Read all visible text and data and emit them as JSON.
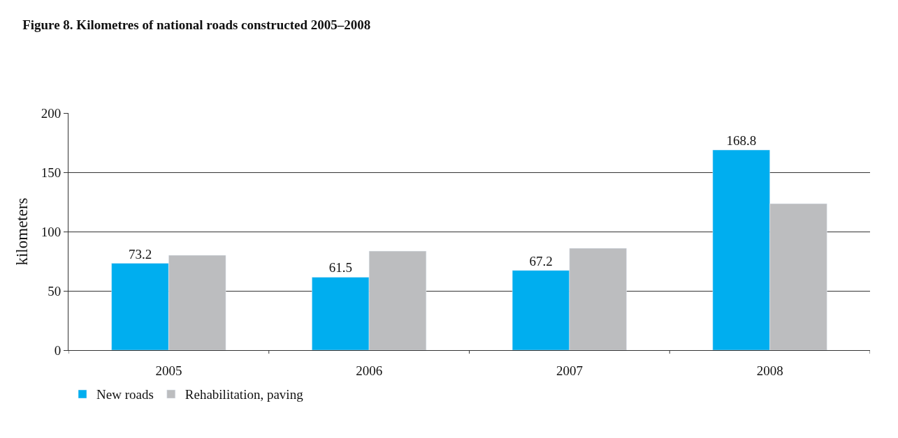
{
  "chart_data": {
    "type": "bar",
    "title": "Figure 8. Kilometres of national roads constructed 2005–2008",
    "ylabel": "kilometers",
    "categories": [
      "2005",
      "2006",
      "2007",
      "2008"
    ],
    "series": [
      {
        "name": "New roads",
        "color": "#00aeef",
        "values": [
          73.2,
          61.5,
          67.2,
          168.8
        ],
        "value_labels": [
          "73.2",
          "61.5",
          "67.2",
          "168.8"
        ]
      },
      {
        "name": "Rehabilitation, paving",
        "color": "#bcbdbf",
        "values": [
          80,
          83.5,
          85.9,
          123.5
        ]
      }
    ],
    "ylim": [
      0,
      200
    ],
    "yticks": [
      0,
      50,
      100,
      150,
      200
    ],
    "grid": "y",
    "legend": "bottom left"
  }
}
